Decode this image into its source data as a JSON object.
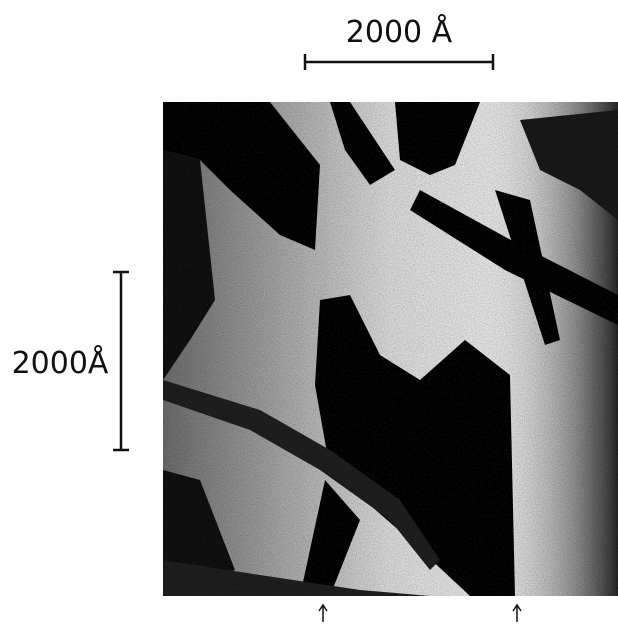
{
  "scale_bars": [
    {
      "label": "2000 Å"
    },
    {
      "label": "2000Å"
    }
  ]
}
